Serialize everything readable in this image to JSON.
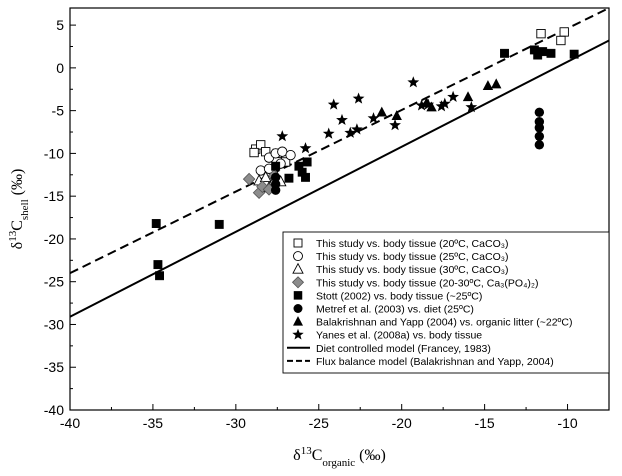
{
  "chart_data": {
    "type": "scatter",
    "xlim": [
      -40,
      -7.5
    ],
    "ylim": [
      -40,
      7
    ],
    "x_ticks": [
      -40,
      -35,
      -30,
      -25,
      -20,
      -15,
      -10
    ],
    "y_ticks": [
      -40,
      -35,
      -30,
      -25,
      -20,
      -15,
      -10,
      -5,
      0,
      5
    ],
    "x_tick_labels": [
      "-40",
      "-35",
      "-30",
      "-25",
      "-20",
      "-15",
      "-10"
    ],
    "y_tick_labels": [
      "-40",
      "-35",
      "-30",
      "-25",
      "-20",
      "-15",
      "-10",
      "-5",
      "0",
      "5"
    ],
    "xlabel": {
      "pre": "δ",
      "sup": "13",
      "main": "C",
      "sub": "organic",
      "post": " (‰)"
    },
    "ylabel": {
      "pre": "δ",
      "sup": "13",
      "main": "C",
      "sub": "shell",
      "post": " (‰)"
    },
    "grid": false,
    "legend_position": "bottom-right",
    "series": [
      {
        "name": "This study vs. body tissue (20ºC, CaCO₃)",
        "marker": "square-open",
        "points": [
          [
            -11.6,
            4.0
          ],
          [
            -10.2,
            4.2
          ],
          [
            -10.4,
            3.2
          ],
          [
            -28.8,
            -9.5
          ],
          [
            -28.5,
            -9.0
          ],
          [
            -28.2,
            -9.8
          ],
          [
            -27.5,
            -10.0
          ],
          [
            -27.0,
            -11.0
          ],
          [
            -28.9,
            -9.9
          ]
        ]
      },
      {
        "name": "This study vs. body tissue (25ºC, CaCO₃)",
        "marker": "circle-open",
        "points": [
          [
            -28.5,
            -12.0
          ],
          [
            -28.0,
            -10.5
          ],
          [
            -27.6,
            -10.0
          ],
          [
            -27.2,
            -9.8
          ],
          [
            -26.7,
            -10.2
          ],
          [
            -27.3,
            -11.2
          ],
          [
            -28.0,
            -11.8
          ]
        ]
      },
      {
        "name": "This study vs. body tissue (30ºC, CaCO₃)",
        "marker": "triangle-open",
        "points": [
          [
            -28.6,
            -13.2
          ],
          [
            -28.2,
            -12.8
          ],
          [
            -27.8,
            -13.6
          ],
          [
            -27.6,
            -12.5
          ],
          [
            -28.0,
            -14.0
          ],
          [
            -27.3,
            -13.3
          ]
        ]
      },
      {
        "name": "This study vs. body tissue (20-30ºC, Ca₃(PO₄)₂)",
        "marker": "diamond",
        "points": [
          [
            -29.2,
            -13.0
          ],
          [
            -28.6,
            -14.6
          ],
          [
            -28.4,
            -13.9
          ],
          [
            -28.0,
            -14.2
          ],
          [
            -27.7,
            -12.6
          ]
        ]
      },
      {
        "name": "Stott (2002) vs. body tissue (~25ºC)",
        "marker": "square",
        "points": [
          [
            -34.8,
            -18.2
          ],
          [
            -34.7,
            -23.0
          ],
          [
            -34.6,
            -24.3
          ],
          [
            -31.0,
            -18.3
          ],
          [
            -27.6,
            -11.5
          ],
          [
            -26.8,
            -12.9
          ],
          [
            -26.2,
            -11.5
          ],
          [
            -26.0,
            -12.2
          ],
          [
            -25.7,
            -11.0
          ],
          [
            -25.8,
            -12.8
          ],
          [
            -13.8,
            1.7
          ],
          [
            -12.0,
            2.1
          ],
          [
            -11.8,
            1.5
          ],
          [
            -11.5,
            1.9
          ],
          [
            -11.0,
            1.7
          ],
          [
            -9.6,
            1.6
          ]
        ]
      },
      {
        "name": "Metref et al. (2003) vs. diet (25ºC)",
        "marker": "circle",
        "points": [
          [
            -27.6,
            -12.8
          ],
          [
            -27.6,
            -13.6
          ],
          [
            -27.6,
            -14.3
          ],
          [
            -11.7,
            -5.2
          ],
          [
            -11.7,
            -6.3
          ],
          [
            -11.7,
            -7.0
          ],
          [
            -11.7,
            -8.0
          ],
          [
            -11.7,
            -9.0
          ]
        ]
      },
      {
        "name": "Balakrishnan and Yapp (2004) vs. organic litter (~22ºC)",
        "marker": "triangle",
        "points": [
          [
            -21.2,
            -5.2
          ],
          [
            -20.3,
            -5.6
          ],
          [
            -18.5,
            -4.1
          ],
          [
            -18.2,
            -4.6
          ],
          [
            -16.0,
            -3.4
          ],
          [
            -14.8,
            -2.1
          ],
          [
            -14.3,
            -1.9
          ]
        ]
      },
      {
        "name": "Yanes et al. (2008a) vs. body tissue",
        "marker": "star",
        "points": [
          [
            -27.2,
            -8.0
          ],
          [
            -25.8,
            -9.4
          ],
          [
            -24.4,
            -7.7
          ],
          [
            -24.1,
            -4.3
          ],
          [
            -23.6,
            -6.1
          ],
          [
            -23.1,
            -7.6
          ],
          [
            -22.6,
            -3.6
          ],
          [
            -22.7,
            -7.2
          ],
          [
            -21.7,
            -5.9
          ],
          [
            -20.4,
            -6.7
          ],
          [
            -19.3,
            -1.7
          ],
          [
            -18.8,
            -4.4
          ],
          [
            -18.4,
            -4.3
          ],
          [
            -17.6,
            -4.5
          ],
          [
            -16.9,
            -3.4
          ],
          [
            -15.8,
            -4.6
          ],
          [
            -17.4,
            -4.2
          ]
        ]
      }
    ],
    "lines": [
      {
        "name": "Diet controlled model (Francey, 1983)",
        "style": "solid",
        "points": [
          [
            -40,
            -29.1
          ],
          [
            -7.5,
            3.2
          ]
        ]
      },
      {
        "name": "Flux balance model (Balakrishnan and Yapp, 2004)",
        "style": "dashed",
        "points": [
          [
            -40,
            -24.0
          ],
          [
            -7.5,
            7.0
          ]
        ]
      }
    ]
  }
}
